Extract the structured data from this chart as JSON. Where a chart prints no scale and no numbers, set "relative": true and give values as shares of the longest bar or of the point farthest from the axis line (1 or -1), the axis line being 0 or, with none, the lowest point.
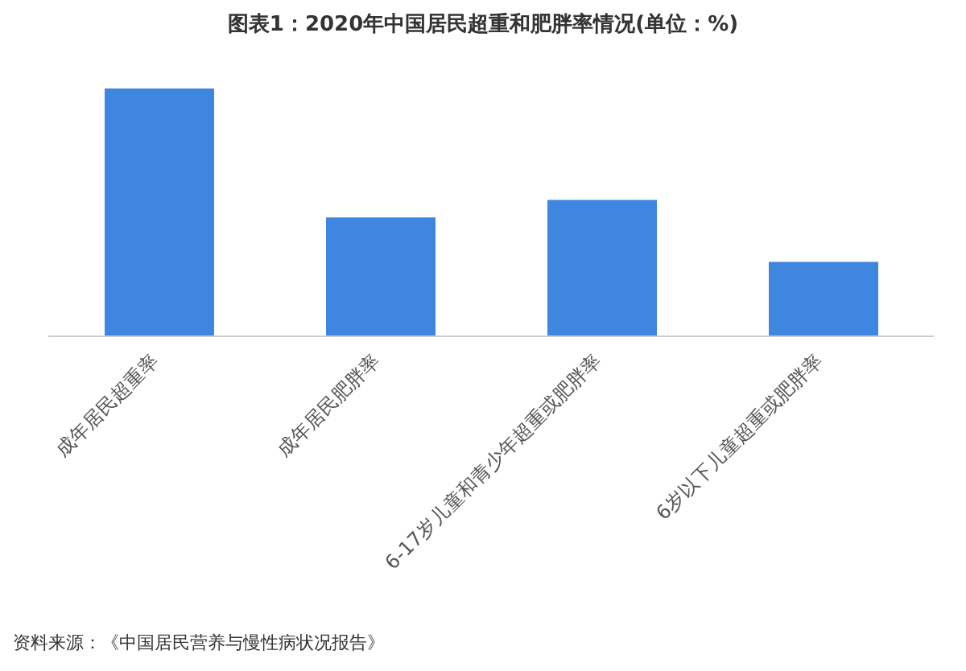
{
  "chart_data": {
    "type": "bar",
    "title": "图表1：2020年中国居民超重和肥胖率情况(单位：%)",
    "categories": [
      "成年居民超重率",
      "成年居民肥胖率",
      "6-17岁儿童和青少年超重或肥胖率",
      "6岁以下儿童超重或肥胖率"
    ],
    "values": [
      1,
      0.48,
      0.55,
      0.3
    ],
    "color": "#3f86e0",
    "relative": true,
    "grid": false,
    "annotations": [
      "资料来源：《中国居民营养与慢性病状况报告》"
    ]
  }
}
